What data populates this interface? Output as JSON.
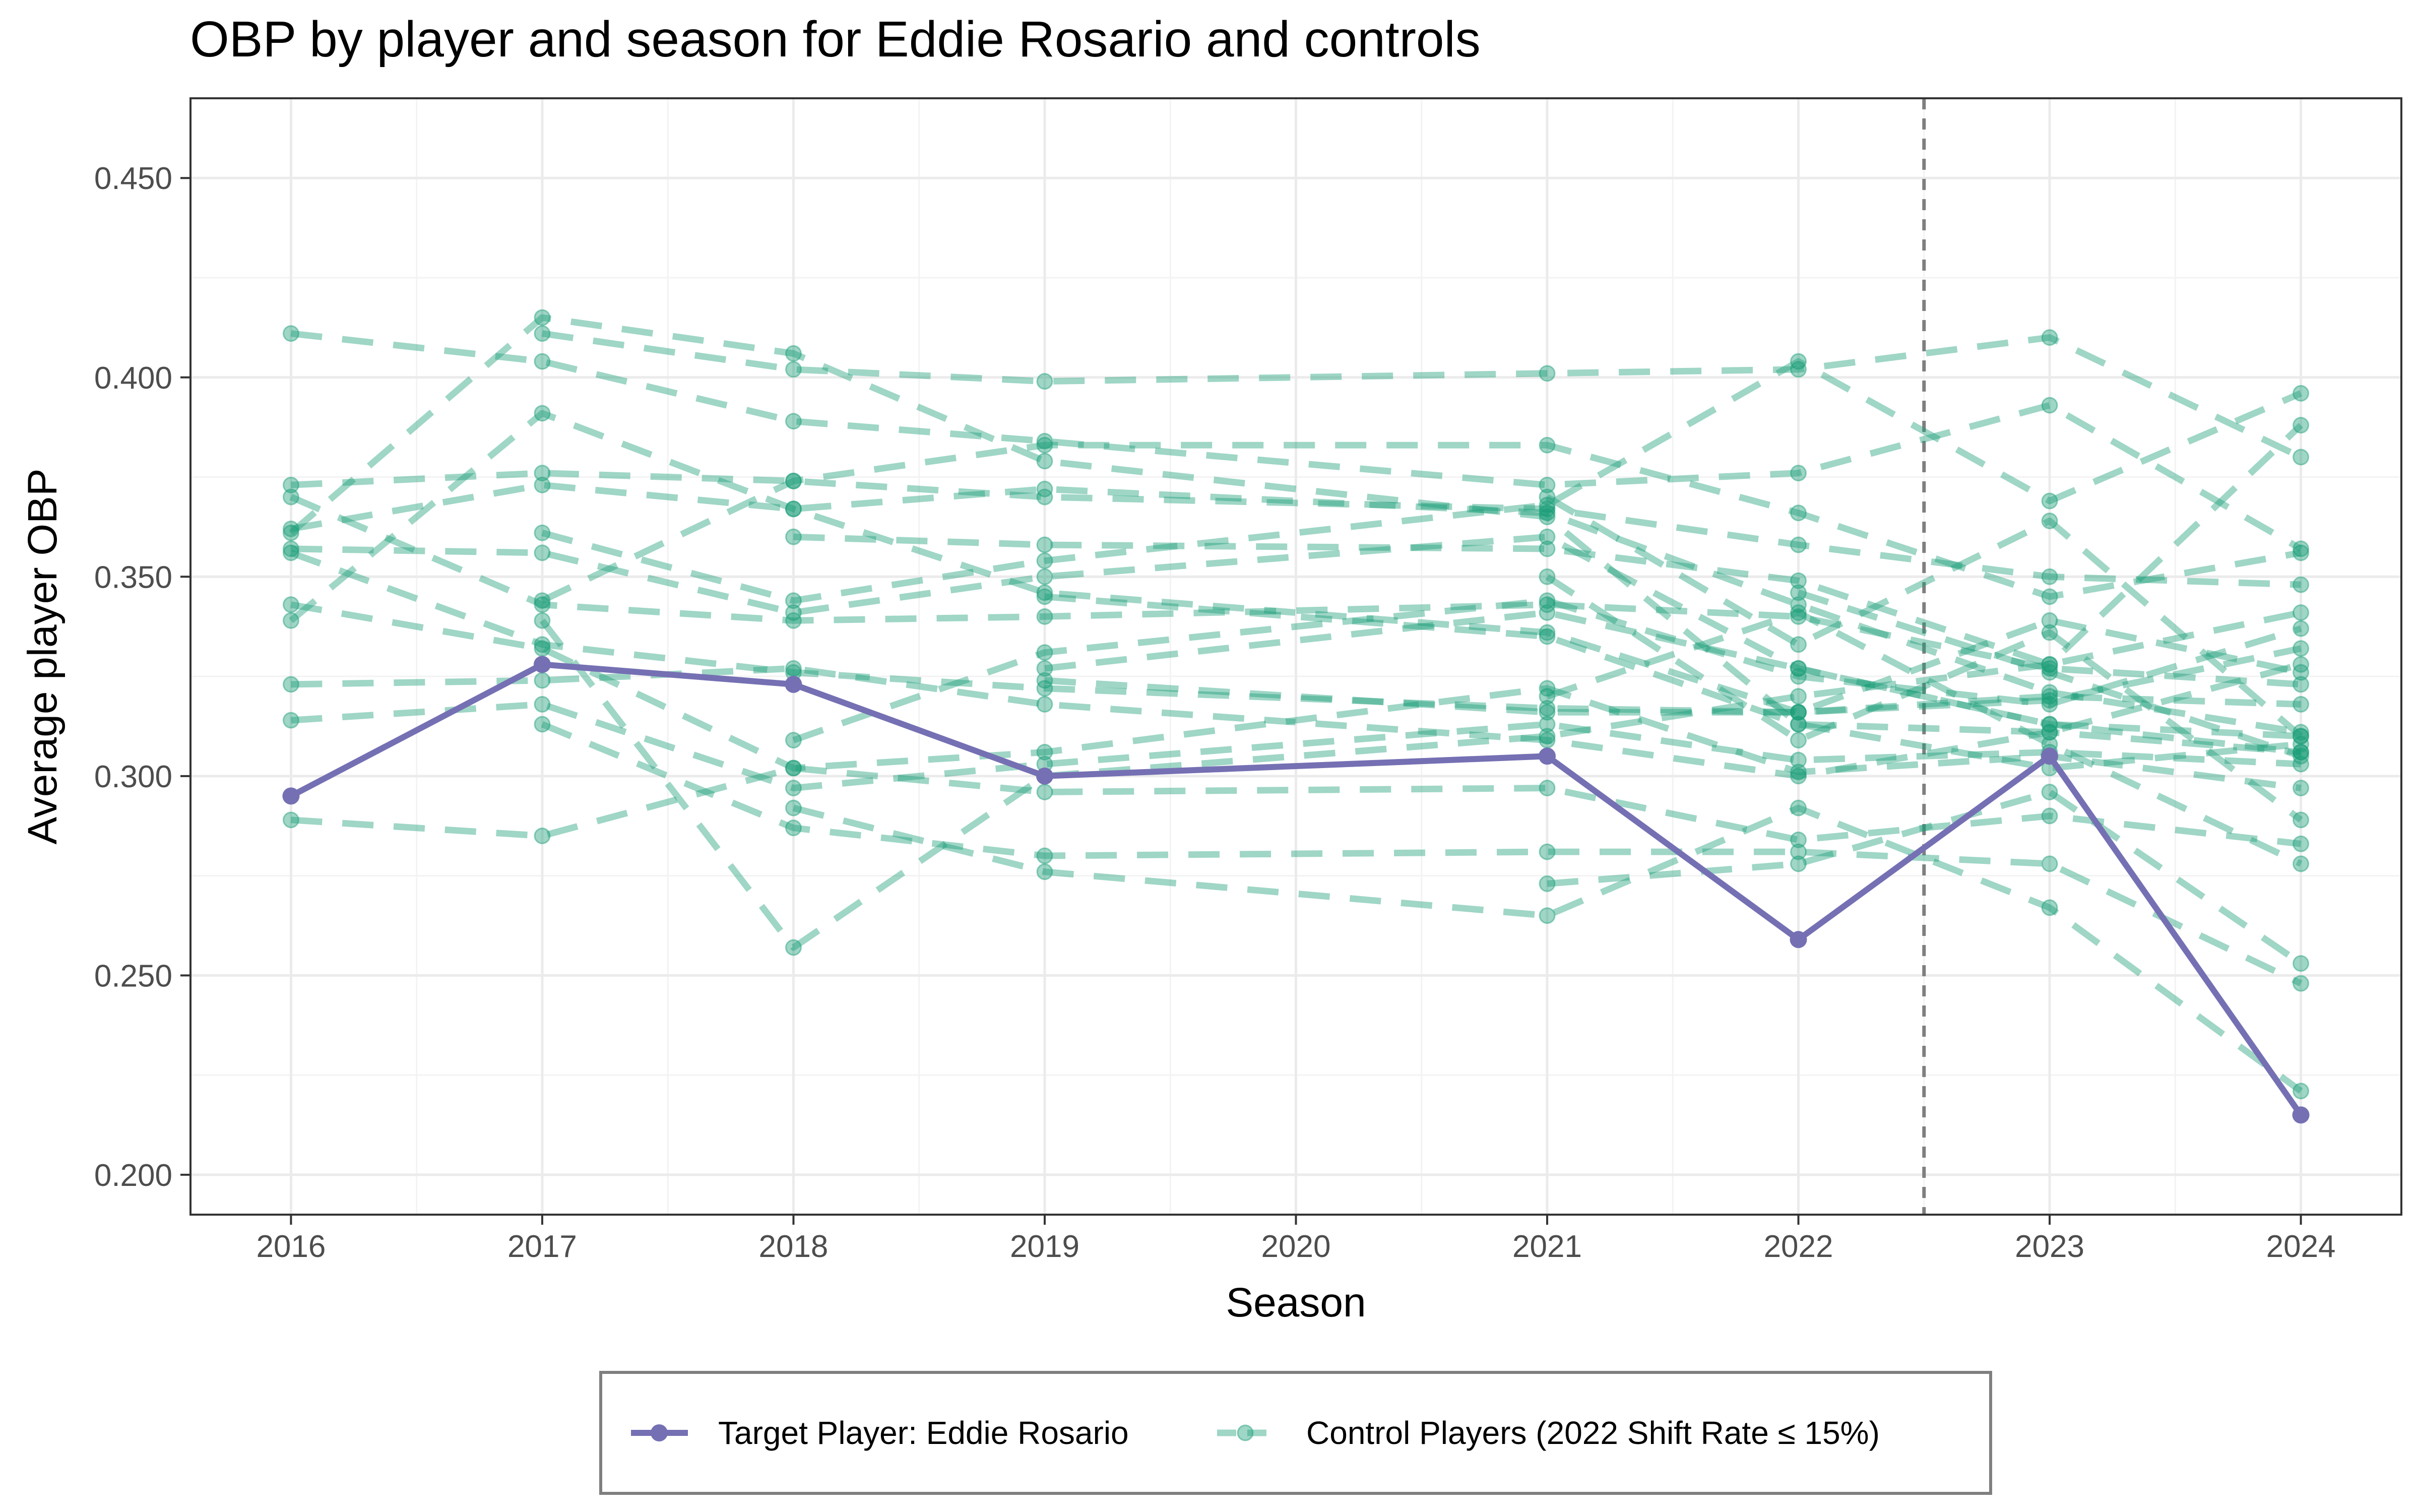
{
  "chart_data": {
    "type": "line",
    "title": "OBP by player and season for Eddie Rosario and controls",
    "xlabel": "Season",
    "ylabel": "Average player OBP",
    "x_ticks": [
      "2016",
      "2017",
      "2018",
      "2019",
      "2020",
      "2021",
      "2022",
      "2023",
      "2024"
    ],
    "y_ticks": [
      "0.200",
      "0.250",
      "0.300",
      "0.350",
      "0.400",
      "0.450"
    ],
    "xlim": [
      2015.6,
      2024.4
    ],
    "ylim": [
      0.19,
      0.47
    ],
    "grid": true,
    "reference_line": {
      "x": 2022.5,
      "style": "dashed",
      "color": "#7f7f7f"
    },
    "legend": {
      "position": "bottom"
    },
    "colors": {
      "target": "#7570b3",
      "control": "#1b9e77"
    },
    "series": [
      {
        "name": "Target Player: Eddie Rosario",
        "style": "solid",
        "color": "#7570b3",
        "points": [
          [
            2016,
            0.295
          ],
          [
            2017,
            0.328
          ],
          [
            2018,
            0.323
          ],
          [
            2019,
            0.3
          ],
          [
            2021,
            0.305
          ],
          [
            2022,
            0.259
          ],
          [
            2023,
            0.305
          ],
          [
            2024,
            0.215
          ]
        ]
      },
      {
        "name": "Control Players (2022 Shift Rate ≤ 15%)",
        "style": "dashed",
        "color": "#1b9e77",
        "players": [
          [
            [
              2016,
              0.411
            ],
            [
              2017,
              0.404
            ],
            [
              2018,
              0.389
            ],
            [
              2019,
              0.384
            ],
            [
              2021,
              0.373
            ],
            [
              2022,
              0.376
            ],
            [
              2023,
              0.393
            ],
            [
              2024,
              0.357
            ]
          ],
          [
            [
              2016,
              0.373
            ],
            [
              2017,
              0.376
            ],
            [
              2018,
              0.374
            ],
            [
              2019,
              0.37
            ],
            [
              2021,
              0.367
            ],
            [
              2022,
              0.358
            ],
            [
              2023,
              0.35
            ],
            [
              2024,
              0.348
            ]
          ],
          [
            [
              2016,
              0.37
            ],
            [
              2017,
              0.343
            ],
            [
              2018,
              0.339
            ],
            [
              2019,
              0.34
            ],
            [
              2021,
              0.343
            ],
            [
              2022,
              0.34
            ],
            [
              2023,
              0.327
            ],
            [
              2024,
              0.323
            ]
          ],
          [
            [
              2016,
              0.362
            ],
            [
              2017,
              0.373
            ],
            [
              2018,
              0.367
            ],
            [
              2019,
              0.372
            ],
            [
              2021,
              0.366
            ],
            [
              2022,
              0.343
            ],
            [
              2023,
              0.321
            ],
            [
              2024,
              0.311
            ]
          ],
          [
            [
              2016,
              0.361
            ],
            [
              2017,
              0.415
            ],
            [
              2018,
              0.406
            ],
            [
              2019,
              0.379
            ],
            [
              2021,
              0.365
            ],
            [
              2022,
              0.313
            ],
            [
              2023,
              0.311
            ],
            [
              2024,
              0.328
            ]
          ],
          [
            [
              2016,
              0.357
            ],
            [
              2017,
              0.356
            ],
            [
              2018,
              0.341
            ],
            [
              2019,
              0.35
            ],
            [
              2021,
              0.36
            ],
            [
              2022,
              0.327
            ],
            [
              2023,
              0.313
            ],
            [
              2024,
              0.306
            ]
          ],
          [
            [
              2016,
              0.356
            ],
            [
              2017,
              0.333
            ],
            [
              2018,
              0.326
            ],
            [
              2019,
              0.322
            ],
            [
              2021,
              0.317
            ],
            [
              2022,
              0.316
            ],
            [
              2023,
              0.32
            ],
            [
              2024,
              0.318
            ]
          ],
          [
            [
              2016,
              0.343
            ],
            [
              2017,
              0.332
            ],
            [
              2018,
              0.302
            ],
            [
              2019,
              0.306
            ],
            [
              2021,
              0.322
            ],
            [
              2022,
              0.301
            ],
            [
              2023,
              0.305
            ],
            [
              2024,
              0.297
            ]
          ],
          [
            [
              2016,
              0.339
            ],
            [
              2017,
              0.391
            ],
            [
              2018,
              0.367
            ],
            [
              2019,
              0.346
            ],
            [
              2021,
              0.336
            ],
            [
              2022,
              0.316
            ],
            [
              2023,
              0.319
            ],
            [
              2024,
              0.332
            ]
          ],
          [
            [
              2016,
              0.323
            ],
            [
              2017,
              0.324
            ],
            [
              2018,
              0.327
            ],
            [
              2019,
              0.318
            ],
            [
              2021,
              0.309
            ],
            [
              2022,
              0.3
            ],
            [
              2023,
              0.311
            ],
            [
              2024,
              0.306
            ]
          ],
          [
            [
              2016,
              0.314
            ],
            [
              2017,
              0.318
            ],
            [
              2018,
              0.297
            ],
            [
              2019,
              0.303
            ],
            [
              2021,
              0.313
            ],
            [
              2022,
              0.304
            ],
            [
              2023,
              0.306
            ],
            [
              2024,
              0.303
            ]
          ],
          [
            [
              2016,
              0.289
            ],
            [
              2017,
              0.285
            ],
            [
              2018,
              0.302
            ],
            [
              2019,
              0.296
            ],
            [
              2021,
              0.297
            ],
            [
              2022,
              0.284
            ],
            [
              2023,
              0.29
            ],
            [
              2024,
              0.283
            ]
          ],
          [
            [
              2017,
              0.411
            ],
            [
              2018,
              0.402
            ],
            [
              2019,
              0.399
            ],
            [
              2021,
              0.401
            ],
            [
              2022,
              0.402
            ],
            [
              2023,
              0.41
            ],
            [
              2024,
              0.38
            ]
          ],
          [
            [
              2017,
              0.361
            ],
            [
              2018,
              0.344
            ],
            [
              2019,
              0.354
            ],
            [
              2021,
              0.368
            ],
            [
              2022,
              0.404
            ],
            [
              2023,
              0.369
            ],
            [
              2024,
              0.396
            ]
          ],
          [
            [
              2017,
              0.344
            ],
            [
              2018,
              0.374
            ],
            [
              2019,
              0.383
            ],
            [
              2021,
              0.383
            ],
            [
              2022,
              0.366
            ],
            [
              2023,
              0.345
            ],
            [
              2024,
              0.356
            ]
          ],
          [
            [
              2017,
              0.313
            ],
            [
              2018,
              0.287
            ],
            [
              2019,
              0.28
            ],
            [
              2021,
              0.281
            ],
            [
              2022,
              0.281
            ],
            [
              2023,
              0.278
            ],
            [
              2024,
              0.248
            ]
          ],
          [
            [
              2017,
              0.339
            ],
            [
              2018,
              0.257
            ],
            [
              2019,
              0.3
            ],
            [
              2021,
              0.31
            ],
            [
              2022,
              0.32
            ],
            [
              2023,
              0.328
            ],
            [
              2024,
              0.388
            ]
          ],
          [
            [
              2018,
              0.36
            ],
            [
              2019,
              0.358
            ],
            [
              2021,
              0.357
            ],
            [
              2022,
              0.349
            ],
            [
              2023,
              0.328
            ],
            [
              2024,
              0.341
            ]
          ],
          [
            [
              2018,
              0.309
            ],
            [
              2019,
              0.331
            ],
            [
              2021,
              0.344
            ],
            [
              2022,
              0.325
            ],
            [
              2023,
              0.318
            ],
            [
              2024,
              0.337
            ]
          ],
          [
            [
              2018,
              0.292
            ],
            [
              2019,
              0.276
            ],
            [
              2021,
              0.265
            ],
            [
              2022,
              0.292
            ],
            [
              2023,
              0.267
            ],
            [
              2024,
              0.221
            ]
          ],
          [
            [
              2019,
              0.327
            ],
            [
              2021,
              0.341
            ],
            [
              2022,
              0.327
            ],
            [
              2023,
              0.313
            ],
            [
              2024,
              0.31
            ]
          ],
          [
            [
              2019,
              0.324
            ],
            [
              2021,
              0.316
            ],
            [
              2022,
              0.316
            ],
            [
              2023,
              0.339
            ],
            [
              2024,
              0.326
            ]
          ],
          [
            [
              2019,
              0.345
            ],
            [
              2021,
              0.335
            ],
            [
              2022,
              0.313
            ],
            [
              2023,
              0.302
            ],
            [
              2024,
              0.308
            ]
          ],
          [
            [
              2021,
              0.35
            ],
            [
              2022,
              0.309
            ],
            [
              2023,
              0.336
            ],
            [
              2024,
              0.289
            ]
          ],
          [
            [
              2021,
              0.32
            ],
            [
              2022,
              0.341
            ],
            [
              2023,
              0.308
            ],
            [
              2024,
              0.278
            ]
          ],
          [
            [
              2021,
              0.273
            ],
            [
              2022,
              0.278
            ],
            [
              2023,
              0.296
            ],
            [
              2024,
              0.253
            ]
          ],
          [
            [
              2021,
              0.37
            ],
            [
              2022,
              0.333
            ],
            [
              2023,
              0.364
            ],
            [
              2024,
              0.31
            ]
          ],
          [
            [
              2022,
              0.346
            ],
            [
              2023,
              0.326
            ],
            [
              2024,
              0.305
            ]
          ]
        ]
      }
    ]
  }
}
